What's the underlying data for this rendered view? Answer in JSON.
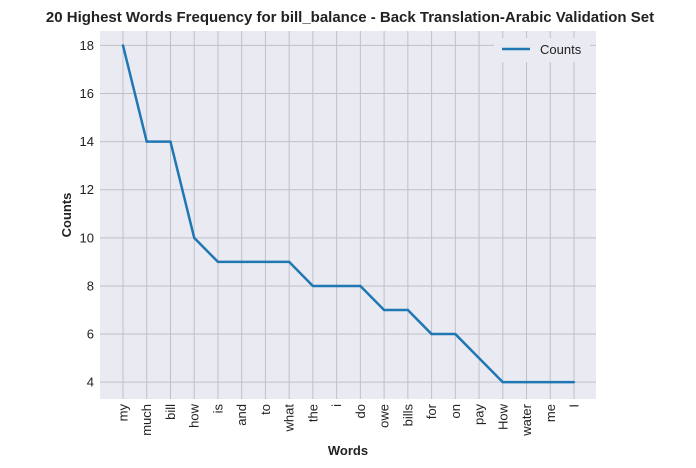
{
  "chart_data": {
    "type": "line",
    "title": "20 Highest Words Frequency for bill_balance - Back Translation-Arabic Validation Set",
    "xlabel": "Words",
    "ylabel": "Counts",
    "categories": [
      "my",
      "much",
      "bill",
      "how",
      "is",
      "and",
      "to",
      "what",
      "the",
      "i",
      "do",
      "owe",
      "bills",
      "for",
      "on",
      "pay",
      "How",
      "water",
      "me",
      "I"
    ],
    "series": [
      {
        "name": "Counts",
        "values": [
          18,
          14,
          14,
          10,
          9,
          9,
          9,
          9,
          8,
          8,
          8,
          7,
          7,
          6,
          6,
          5,
          4,
          4,
          4,
          4
        ]
      }
    ],
    "ylim": [
      3.3,
      18.6
    ],
    "yticks": [
      4,
      6,
      8,
      10,
      12,
      14,
      16,
      18
    ],
    "grid": true,
    "legend": "top-right",
    "colors": {
      "line": "#1f77b4",
      "plot_background": "#eaeaf2",
      "grid": "#c0c0c8"
    }
  }
}
